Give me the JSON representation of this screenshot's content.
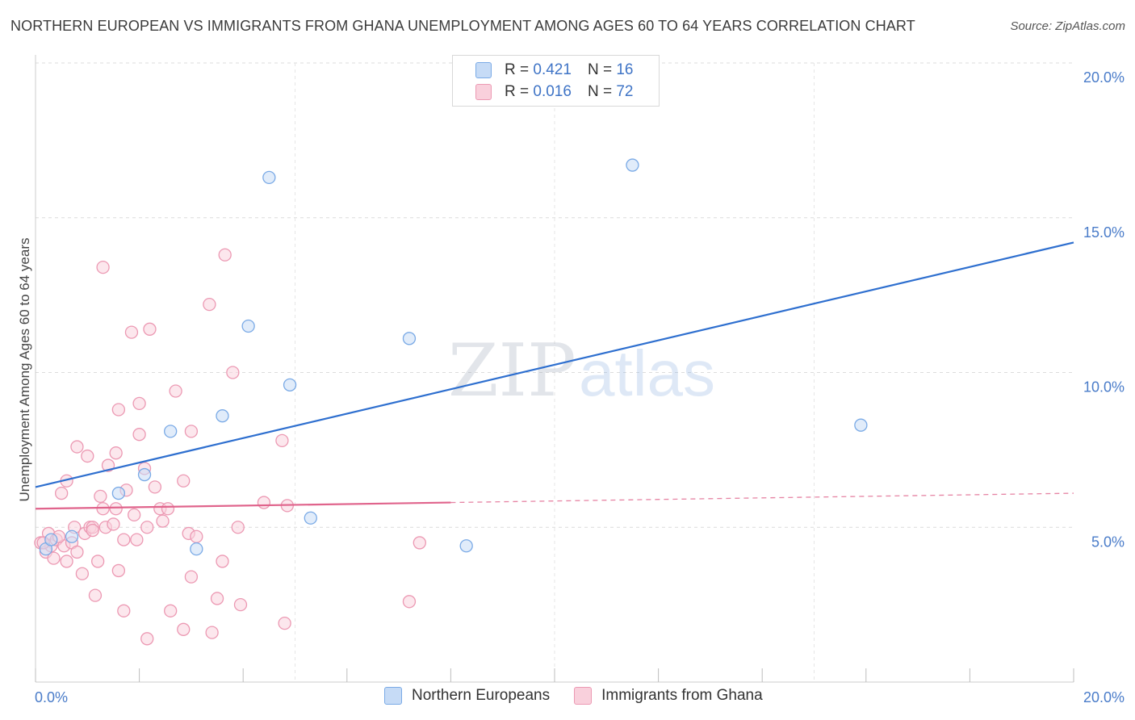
{
  "title": "NORTHERN EUROPEAN VS IMMIGRANTS FROM GHANA UNEMPLOYMENT AMONG AGES 60 TO 64 YEARS CORRELATION CHART",
  "source": "Source: ZipAtlas.com",
  "watermark": {
    "zip": "ZIP",
    "atlas": "atlas"
  },
  "legend": {
    "rows": [
      {
        "r_label": "R =",
        "r_value": "0.421",
        "n_label": "N =",
        "n_value": "16",
        "color": "#a8c8f0"
      },
      {
        "r_label": "R =",
        "r_value": "0.016",
        "n_label": "N =",
        "n_value": "72",
        "color": "#f5b8ca"
      }
    ]
  },
  "bottom_legend": {
    "items": [
      {
        "label": "Northern Europeans",
        "color": "#a8c8f0"
      },
      {
        "label": "Immigrants from Ghana",
        "color": "#f5b8ca"
      }
    ]
  },
  "chart_data": {
    "type": "scatter",
    "ylabel": "Unemployment Among Ages 60 to 64 years",
    "xlim": [
      0,
      20
    ],
    "ylim": [
      0,
      20
    ],
    "x_tick_labels": [
      "0.0%",
      "20.0%"
    ],
    "y_ticks": [
      5,
      10,
      15,
      20
    ],
    "y_tick_labels": [
      "5.0%",
      "10.0%",
      "15.0%",
      "20.0%"
    ],
    "grid": true,
    "series": [
      {
        "name": "Northern Europeans",
        "color": "#7aaae6",
        "fill": "#c9ddf6",
        "trend_color": "#2e6fcf",
        "trend": {
          "x0": 0,
          "y0": 6.3,
          "x1": 20,
          "y1": 14.2,
          "dashed_from": null
        },
        "points": [
          [
            0.2,
            4.3
          ],
          [
            0.3,
            4.6
          ],
          [
            0.7,
            4.7
          ],
          [
            1.6,
            6.1
          ],
          [
            2.1,
            6.7
          ],
          [
            2.6,
            8.1
          ],
          [
            3.1,
            4.3
          ],
          [
            3.6,
            8.6
          ],
          [
            4.1,
            11.5
          ],
          [
            4.5,
            16.3
          ],
          [
            4.9,
            9.6
          ],
          [
            5.3,
            5.3
          ],
          [
            7.2,
            11.1
          ],
          [
            8.3,
            4.4
          ],
          [
            11.5,
            16.7
          ],
          [
            15.9,
            8.3
          ]
        ]
      },
      {
        "name": "Immigrants from Ghana",
        "color": "#ec99b3",
        "fill": "#f9d3de",
        "trend_color": "#e0648c",
        "trend": {
          "x0": 0,
          "y0": 5.6,
          "x1": 20,
          "y1": 6.1,
          "dashed_from": 8.0
        },
        "points": [
          [
            0.1,
            4.5
          ],
          [
            0.2,
            4.2
          ],
          [
            0.25,
            4.8
          ],
          [
            0.3,
            4.4
          ],
          [
            0.35,
            4.0
          ],
          [
            0.4,
            4.6
          ],
          [
            0.5,
            6.1
          ],
          [
            0.55,
            4.4
          ],
          [
            0.6,
            3.9
          ],
          [
            0.6,
            6.5
          ],
          [
            0.7,
            4.5
          ],
          [
            0.75,
            5.0
          ],
          [
            0.8,
            7.6
          ],
          [
            0.8,
            4.2
          ],
          [
            0.9,
            3.5
          ],
          [
            0.95,
            4.8
          ],
          [
            1.0,
            7.3
          ],
          [
            1.05,
            5.0
          ],
          [
            1.1,
            5.0
          ],
          [
            1.15,
            2.8
          ],
          [
            1.2,
            3.9
          ],
          [
            1.25,
            6.0
          ],
          [
            1.3,
            5.6
          ],
          [
            1.3,
            13.4
          ],
          [
            1.35,
            5.0
          ],
          [
            1.4,
            7.0
          ],
          [
            1.5,
            5.1
          ],
          [
            1.55,
            5.6
          ],
          [
            1.55,
            7.4
          ],
          [
            1.6,
            3.6
          ],
          [
            1.6,
            8.8
          ],
          [
            1.7,
            2.3
          ],
          [
            1.7,
            4.6
          ],
          [
            1.75,
            6.2
          ],
          [
            1.85,
            11.3
          ],
          [
            1.9,
            5.4
          ],
          [
            1.95,
            4.6
          ],
          [
            2.0,
            8.0
          ],
          [
            2.0,
            9.0
          ],
          [
            2.1,
            6.9
          ],
          [
            2.15,
            1.4
          ],
          [
            2.15,
            5.0
          ],
          [
            2.2,
            11.4
          ],
          [
            2.3,
            6.3
          ],
          [
            2.4,
            5.6
          ],
          [
            2.45,
            5.2
          ],
          [
            2.6,
            2.3
          ],
          [
            2.7,
            9.4
          ],
          [
            2.85,
            1.7
          ],
          [
            2.85,
            6.5
          ],
          [
            2.95,
            4.8
          ],
          [
            3.0,
            3.4
          ],
          [
            3.0,
            8.1
          ],
          [
            3.35,
            12.2
          ],
          [
            3.4,
            1.6
          ],
          [
            3.5,
            2.7
          ],
          [
            3.6,
            3.9
          ],
          [
            3.65,
            13.8
          ],
          [
            3.8,
            10.0
          ],
          [
            3.9,
            5.0
          ],
          [
            3.95,
            2.5
          ],
          [
            4.4,
            5.8
          ],
          [
            4.75,
            7.8
          ],
          [
            4.8,
            1.9
          ],
          [
            4.85,
            5.7
          ],
          [
            7.2,
            2.6
          ],
          [
            7.4,
            4.5
          ],
          [
            0.15,
            4.5
          ],
          [
            0.45,
            4.7
          ],
          [
            1.1,
            4.9
          ],
          [
            2.55,
            5.6
          ],
          [
            3.1,
            4.7
          ]
        ]
      }
    ]
  }
}
